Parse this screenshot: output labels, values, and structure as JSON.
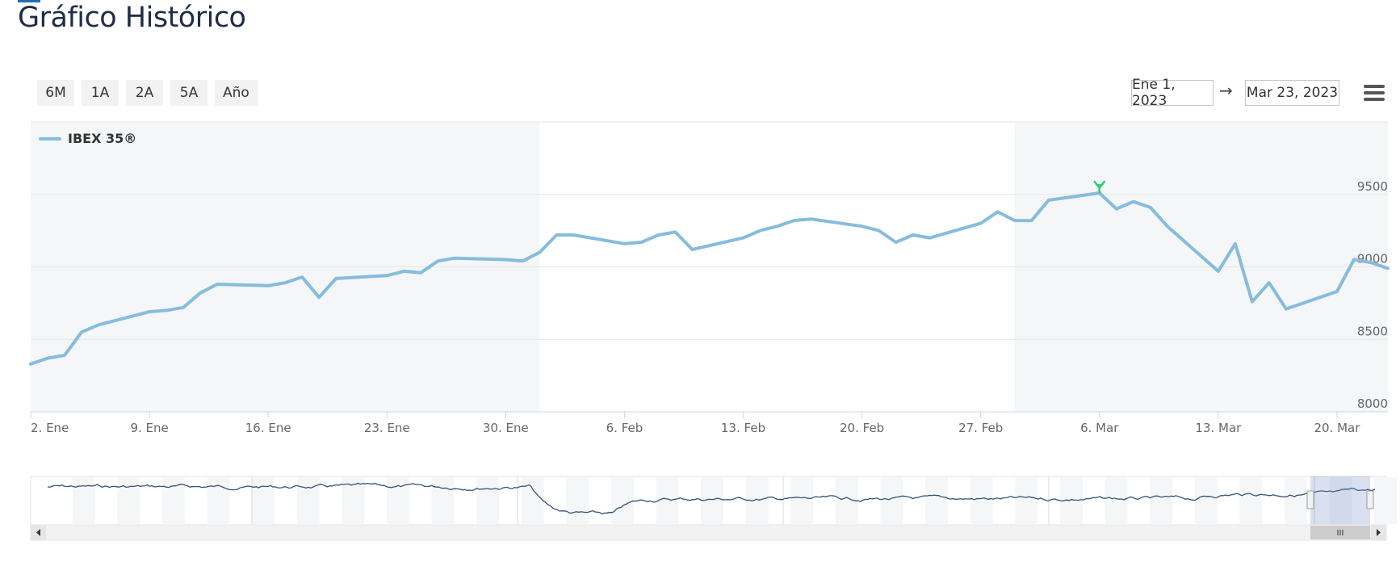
{
  "page": {
    "title": "Gráfico Histórico"
  },
  "range_buttons": [
    "6M",
    "1A",
    "2A",
    "5A",
    "Año"
  ],
  "date_range": {
    "from": "Ene 1, 2023",
    "arrow": "→",
    "to": "Mar 23, 2023"
  },
  "menu": {
    "icon": "hamburger-menu-icon"
  },
  "colors": {
    "series": "#86bcdc",
    "band": "#f4f6f7",
    "flag": "#2ecc71"
  },
  "chart_data": {
    "type": "line",
    "series": [
      {
        "name": "IBEX 35®",
        "x": [
          "2023-01-02",
          "2023-01-03",
          "2023-01-04",
          "2023-01-05",
          "2023-01-06",
          "2023-01-09",
          "2023-01-10",
          "2023-01-11",
          "2023-01-12",
          "2023-01-13",
          "2023-01-16",
          "2023-01-17",
          "2023-01-18",
          "2023-01-19",
          "2023-01-20",
          "2023-01-23",
          "2023-01-24",
          "2023-01-25",
          "2023-01-26",
          "2023-01-27",
          "2023-01-30",
          "2023-01-31",
          "2023-02-01",
          "2023-02-02",
          "2023-02-03",
          "2023-02-06",
          "2023-02-07",
          "2023-02-08",
          "2023-02-09",
          "2023-02-10",
          "2023-02-13",
          "2023-02-14",
          "2023-02-15",
          "2023-02-16",
          "2023-02-17",
          "2023-02-20",
          "2023-02-21",
          "2023-02-22",
          "2023-02-23",
          "2023-02-24",
          "2023-02-27",
          "2023-02-28",
          "2023-03-01",
          "2023-03-02",
          "2023-03-03",
          "2023-03-06",
          "2023-03-07",
          "2023-03-08",
          "2023-03-09",
          "2023-03-10",
          "2023-03-13",
          "2023-03-14",
          "2023-03-15",
          "2023-03-16",
          "2023-03-17",
          "2023-03-20",
          "2023-03-21",
          "2023-03-22",
          "2023-03-23"
        ],
        "values": [
          8330,
          8370,
          8390,
          8550,
          8600,
          8690,
          8700,
          8720,
          8820,
          8880,
          8870,
          8890,
          8930,
          8790,
          8920,
          8940,
          8970,
          8960,
          9040,
          9060,
          9050,
          9040,
          9100,
          9220,
          9220,
          9160,
          9170,
          9220,
          9240,
          9120,
          9200,
          9250,
          9280,
          9320,
          9330,
          9280,
          9250,
          9170,
          9220,
          9200,
          9300,
          9380,
          9320,
          9320,
          9460,
          9510,
          9400,
          9450,
          9410,
          9280,
          8970,
          9160,
          8760,
          8890,
          8710,
          8830,
          9050,
          9030,
          8990
        ]
      }
    ],
    "x_ticks": [
      "2. Ene",
      "9. Ene",
      "16. Ene",
      "23. Ene",
      "30. Ene",
      "6. Feb",
      "13. Feb",
      "20. Feb",
      "27. Feb",
      "6. Mar",
      "13. Mar",
      "20. Mar"
    ],
    "y_ticks": [
      8000,
      8500,
      9000,
      9500
    ],
    "ylim": [
      8000,
      10000
    ],
    "xlim": [
      "2023-01-02",
      "2023-03-23"
    ],
    "grid": true,
    "legend": "top-left",
    "y_axis_side": "right",
    "flag_marker_date": "2023-03-06",
    "shaded_months": [
      "Ene",
      "Mar"
    ]
  }
}
